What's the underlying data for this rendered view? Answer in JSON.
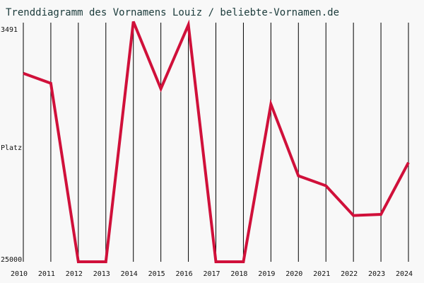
{
  "chart_data": {
    "type": "line",
    "title": "Trenddiagramm des Vornamens Louiz / beliebte-Vornamen.de",
    "y_label": "Platz",
    "categories": [
      "2010",
      "2011",
      "2012",
      "2013",
      "2014",
      "2015",
      "2016",
      "2017",
      "2018",
      "2019",
      "2020",
      "2021",
      "2022",
      "2023",
      "2024"
    ],
    "series": [
      {
        "color": "#d0103a",
        "values": [
          7900,
          8800,
          25000,
          25000,
          3200,
          9300,
          3500,
          25000,
          25000,
          10700,
          17200,
          18100,
          20800,
          20700,
          16000
        ]
      }
    ],
    "ylim": [
      3491,
      25000
    ],
    "yticks": [
      3491,
      25000
    ],
    "y_inverted": true,
    "grid": true
  }
}
